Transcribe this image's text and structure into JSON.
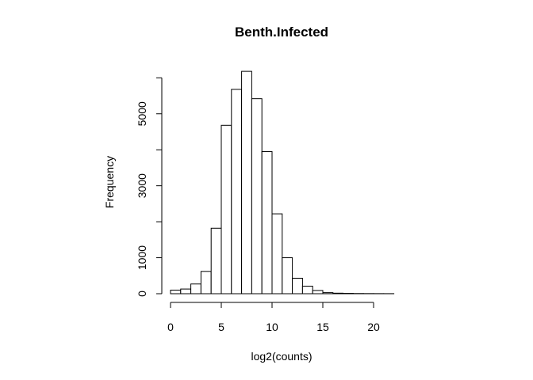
{
  "chart_data": {
    "type": "bar",
    "title": "Benth.Infected",
    "xlabel": "log2(counts)",
    "ylabel": "Frequency",
    "bin_width": 1,
    "bin_start": 0,
    "values": [
      100,
      130,
      270,
      620,
      1820,
      4680,
      5680,
      6180,
      5420,
      3950,
      2220,
      1000,
      430,
      210,
      90,
      30,
      15,
      10,
      6,
      4,
      3,
      2
    ],
    "xlim": [
      0,
      22
    ],
    "ylim": [
      0,
      6180
    ],
    "x_ticks": [
      "0",
      "5",
      "10",
      "15",
      "20"
    ],
    "x_tick_values": [
      0,
      5,
      10,
      15,
      20
    ],
    "y_ticks": [
      "0",
      "1000",
      "3000",
      "5000"
    ],
    "y_tick_values": [
      0,
      1000,
      3000,
      5000
    ],
    "y_minor_ticks": [
      2000,
      4000,
      6000
    ],
    "grid": false
  }
}
